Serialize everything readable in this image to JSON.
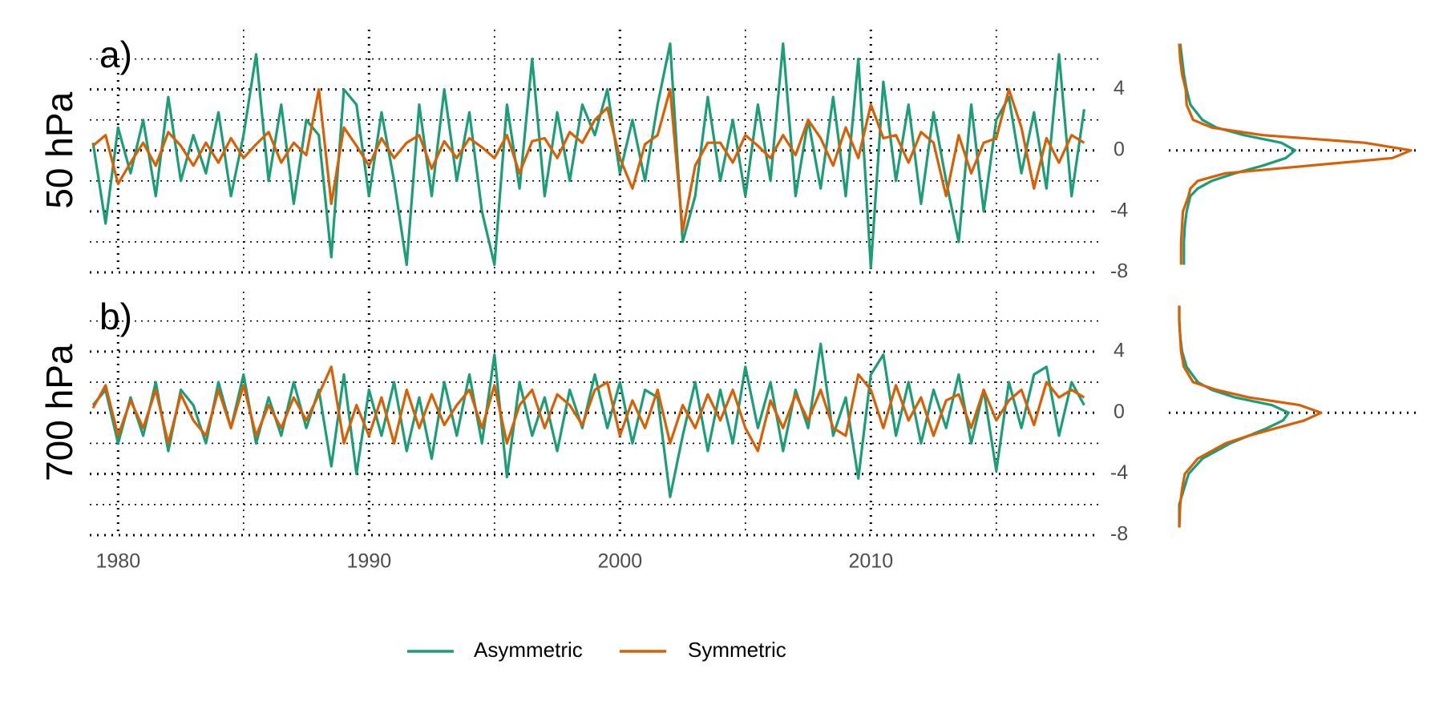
{
  "chart_data": [
    {
      "type": "line",
      "label": "a)",
      "ylabel": "50 hPa",
      "x": [
        1979,
        1979.5,
        1980,
        1980.5,
        1981,
        1981.5,
        1982,
        1982.5,
        1983,
        1983.5,
        1984,
        1984.5,
        1985,
        1985.5,
        1986,
        1986.5,
        1987,
        1987.5,
        1988,
        1988.5,
        1989,
        1989.5,
        1990,
        1990.5,
        1991,
        1991.5,
        1992,
        1992.5,
        1993,
        1993.5,
        1994,
        1994.5,
        1995,
        1995.5,
        1996,
        1996.5,
        1997,
        1997.5,
        1998,
        1998.5,
        1999,
        1999.5,
        2000,
        2000.5,
        2001,
        2001.5,
        2002,
        2002.5,
        2003,
        2003.5,
        2004,
        2004.5,
        2005,
        2005.5,
        2006,
        2006.5,
        2007,
        2007.5,
        2008,
        2008.5,
        2009,
        2009.5,
        2010,
        2010.5,
        2011,
        2011.5,
        2012,
        2012.5,
        2013,
        2013.5,
        2014,
        2014.5,
        2015,
        2015.5,
        2016,
        2016.5,
        2017,
        2017.5,
        2018,
        2018.5
      ],
      "series": [
        {
          "name": "Asymmetric",
          "color": "#1b9e77",
          "values": [
            0.5,
            -4.8,
            1.5,
            -1.5,
            2,
            -3,
            3.5,
            -2,
            1,
            -1.5,
            2.5,
            -3,
            1,
            6.3,
            -2,
            3,
            -3.5,
            2,
            1,
            -7,
            4,
            3,
            -3,
            2.5,
            -2,
            -7.5,
            3,
            -3,
            4,
            -2,
            2.5,
            -4,
            -7.5,
            3,
            -2.5,
            6,
            -3,
            2.5,
            -2,
            3,
            1,
            4,
            -1.5,
            2,
            -2,
            3,
            7,
            -6,
            -3,
            3.5,
            -2,
            2,
            -3,
            3,
            -2,
            7,
            -3,
            2,
            -2.5,
            3.5,
            -3,
            6,
            -7.7,
            4.5,
            -2,
            3,
            -3.5,
            2.5,
            -2,
            -6,
            3,
            -4,
            2,
            3.5,
            -1.5,
            2.5,
            -2.5,
            6.3,
            -3,
            2.7
          ]
        },
        {
          "name": "Symmetric",
          "color": "#d95f02",
          "values": [
            0.3,
            1.0,
            -2.2,
            -0.8,
            0.5,
            -1.0,
            1.2,
            0.3,
            -1.0,
            0.5,
            -0.8,
            0.8,
            -0.5,
            0.4,
            1.2,
            -0.8,
            0.5,
            -0.3,
            4.0,
            -3.5,
            1.5,
            0.3,
            -1.0,
            0.8,
            -0.5,
            0.5,
            1.0,
            -1.2,
            0.6,
            -0.5,
            0.8,
            0.2,
            -0.5,
            1.0,
            -1.5,
            0.6,
            0.8,
            -0.5,
            1.2,
            0.5,
            2.0,
            2.8,
            -0.5,
            -2.5,
            0.4,
            1.0,
            4.0,
            -5.3,
            -1.0,
            0.5,
            0.5,
            -0.8,
            1.0,
            0.3,
            -0.5,
            1.0,
            -0.3,
            2.0,
            0.8,
            -1.0,
            1.5,
            -0.5,
            3.0,
            0.8,
            1.0,
            -0.8,
            1.2,
            0.5,
            -3.0,
            1.0,
            -1.5,
            0.5,
            0.8,
            4.0,
            1.5,
            -2.5,
            0.8,
            -0.8,
            1.0,
            0.5
          ]
        }
      ],
      "xlim": [
        1979,
        2019
      ],
      "xgrid": [
        1980,
        1990,
        2000,
        2010
      ],
      "minor_xgrid": [
        1985,
        1995,
        2005,
        2015
      ],
      "ylim": [
        -8,
        7.5
      ],
      "yticks": [
        -8,
        -4,
        0,
        4
      ],
      "minor_yticks": [
        -6,
        -2,
        2,
        6
      ],
      "grid": true
    },
    {
      "type": "line",
      "label": "b)",
      "ylabel": "700 hPa",
      "x": [
        1979,
        1979.5,
        1980,
        1980.5,
        1981,
        1981.5,
        1982,
        1982.5,
        1983,
        1983.5,
        1984,
        1984.5,
        1985,
        1985.5,
        1986,
        1986.5,
        1987,
        1987.5,
        1988,
        1988.5,
        1989,
        1989.5,
        1990,
        1990.5,
        1991,
        1991.5,
        1992,
        1992.5,
        1993,
        1993.5,
        1994,
        1994.5,
        1995,
        1995.5,
        1996,
        1996.5,
        1997,
        1997.5,
        1998,
        1998.5,
        1999,
        1999.5,
        2000,
        2000.5,
        2001,
        2001.5,
        2002,
        2002.5,
        2003,
        2003.5,
        2004,
        2004.5,
        2005,
        2005.5,
        2006,
        2006.5,
        2007,
        2007.5,
        2008,
        2008.5,
        2009,
        2009.5,
        2010,
        2010.5,
        2011,
        2011.5,
        2012,
        2012.5,
        2013,
        2013.5,
        2014,
        2014.5,
        2015,
        2015.5,
        2016,
        2016.5,
        2017,
        2017.5,
        2018,
        2018.5
      ],
      "series": [
        {
          "name": "Asymmetric",
          "color": "#1b9e77",
          "values": [
            0.5,
            1.5,
            -2.0,
            1.0,
            -1.5,
            2.0,
            -2.5,
            1.5,
            0.5,
            -2.0,
            2.0,
            -1.0,
            2.5,
            -2.0,
            1.0,
            -1.5,
            2.0,
            -1.0,
            1.5,
            -3.5,
            2.5,
            -4.0,
            1.5,
            -1.5,
            2.0,
            -2.5,
            1.0,
            -3.0,
            2.0,
            -1.5,
            2.5,
            -2.0,
            3.8,
            -4.2,
            2.0,
            -1.5,
            1.0,
            -2.5,
            1.5,
            -1.0,
            2.5,
            -1.0,
            2.0,
            -2.0,
            1.5,
            1.0,
            -5.5,
            -1.5,
            2.0,
            -2.5,
            1.5,
            -2.0,
            3.0,
            -1.0,
            2.0,
            -2.5,
            1.5,
            -1.0,
            4.5,
            -1.5,
            1.0,
            -4.3,
            2.5,
            3.8,
            -1.5,
            2.0,
            -2.0,
            1.5,
            -1.0,
            2.5,
            -2.0,
            1.5,
            -3.8,
            2.0,
            -1.0,
            2.5,
            3.0,
            -1.5,
            2.0,
            0.5
          ]
        },
        {
          "name": "Symmetric",
          "color": "#d95f02",
          "values": [
            0.3,
            1.8,
            -1.5,
            0.8,
            -1.0,
            1.5,
            -2.0,
            1.2,
            -0.5,
            -1.5,
            1.5,
            -1.0,
            1.8,
            -1.5,
            0.5,
            -1.0,
            1.0,
            -0.5,
            1.2,
            3.0,
            -2.0,
            0.5,
            -1.5,
            1.0,
            -2.0,
            1.5,
            -1.0,
            1.2,
            -0.8,
            0.5,
            1.5,
            -1.0,
            1.8,
            -2.0,
            0.5,
            1.5,
            -1.0,
            1.2,
            0.5,
            -0.8,
            1.5,
            2.0,
            -1.5,
            0.8,
            -1.0,
            1.5,
            -2.0,
            0.5,
            -1.0,
            1.2,
            -0.5,
            1.5,
            -1.0,
            -2.5,
            0.8,
            -1.0,
            1.2,
            -0.5,
            1.5,
            -1.0,
            -1.5,
            2.5,
            1.5,
            -1.0,
            1.8,
            -0.5,
            1.0,
            -1.5,
            0.8,
            1.2,
            -1.0,
            1.5,
            -0.5,
            0.8,
            1.5,
            -0.8,
            2.0,
            1.0,
            1.5,
            1.0
          ]
        }
      ],
      "xlim": [
        1979,
        2019
      ],
      "xticks": [
        1980,
        1990,
        2000,
        2010
      ],
      "minor_xgrid": [
        1985,
        1995,
        2005,
        2015
      ],
      "ylim": [
        -8,
        7.5
      ],
      "yticks": [
        -8,
        -4,
        0,
        4
      ],
      "minor_yticks": [
        -6,
        -2,
        2,
        6
      ],
      "grid": true
    },
    {
      "type": "density",
      "y": [
        -7.5,
        -6,
        -5,
        -4,
        -3,
        -2.5,
        -2,
        -1.5,
        -1,
        -0.5,
        0,
        0.5,
        1,
        1.5,
        2,
        3,
        4,
        5,
        6,
        7
      ],
      "series": [
        {
          "name": "Asymmetric",
          "color": "#1b9e77",
          "values": [
            0.01,
            0.01,
            0.012,
            0.016,
            0.024,
            0.04,
            0.07,
            0.12,
            0.18,
            0.23,
            0.25,
            0.22,
            0.14,
            0.08,
            0.05,
            0.024,
            0.016,
            0.01,
            0.006,
            0.002
          ]
        },
        {
          "name": "Symmetric",
          "color": "#d95f02",
          "values": [
            0.004,
            0.004,
            0.006,
            0.008,
            0.02,
            0.024,
            0.04,
            0.1,
            0.28,
            0.46,
            0.5,
            0.4,
            0.18,
            0.07,
            0.03,
            0.016,
            0.014,
            0.006,
            0.002,
            0
          ]
        }
      ],
      "xlim": [
        0,
        0.5
      ],
      "ylim": [
        -8,
        7.5
      ],
      "hline": 0
    },
    {
      "type": "density",
      "y": [
        -7.5,
        -6,
        -5,
        -4,
        -3,
        -2.5,
        -2,
        -1.5,
        -1,
        -0.5,
        0,
        0.5,
        1,
        1.5,
        2,
        3,
        4,
        5,
        6,
        7
      ],
      "series": [
        {
          "name": "Asymmetric",
          "color": "#1b9e77",
          "values": [
            0,
            0,
            0.01,
            0.02,
            0.05,
            0.08,
            0.11,
            0.15,
            0.19,
            0.224,
            0.236,
            0.2,
            0.12,
            0.07,
            0.04,
            0.016,
            0.006,
            0.002,
            0,
            0
          ]
        },
        {
          "name": "Symmetric",
          "color": "#d95f02",
          "values": [
            0,
            0.002,
            0.006,
            0.012,
            0.04,
            0.07,
            0.1,
            0.15,
            0.21,
            0.27,
            0.306,
            0.26,
            0.15,
            0.08,
            0.03,
            0.01,
            0.004,
            0.002,
            0,
            0
          ]
        }
      ],
      "xlim": [
        0,
        0.5
      ],
      "ylim": [
        -8,
        7.5
      ],
      "hline": 0
    }
  ]
}
